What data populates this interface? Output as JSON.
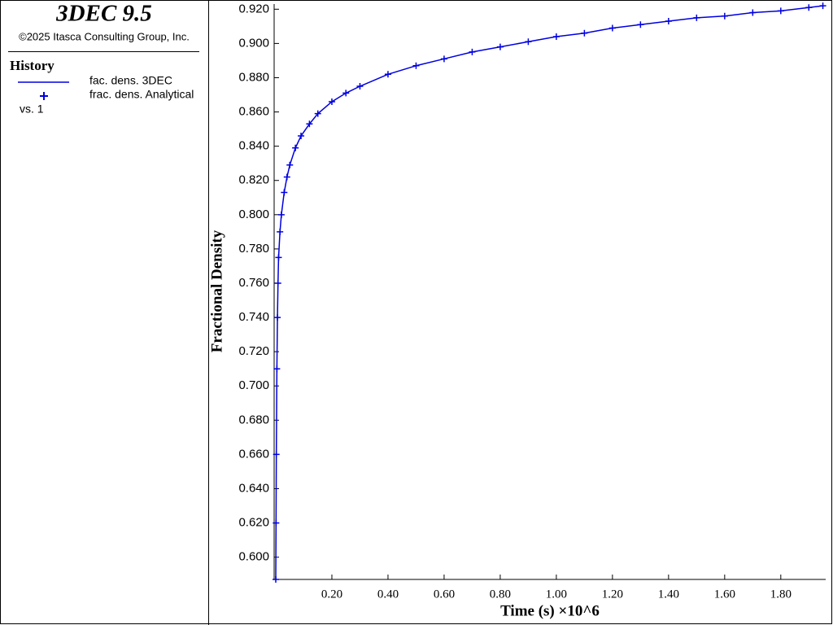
{
  "chart_data": {
    "type": "line",
    "title": "3DEC 9.5",
    "subtitle": "©2025 Itasca Consulting Group, Inc.",
    "legend_title": "History",
    "legend_suffix": "vs. 1",
    "xlabel": "Time (s) ×10^6",
    "ylabel": "Fractional Density",
    "x": [
      0,
      0.001,
      0.002,
      0.004,
      0.006,
      0.008,
      0.01,
      0.015,
      0.02,
      0.03,
      0.04,
      0.05,
      0.07,
      0.09,
      0.12,
      0.15,
      0.2,
      0.25,
      0.3,
      0.4,
      0.5,
      0.6,
      0.7,
      0.8,
      0.9,
      1.0,
      1.1,
      1.2,
      1.3,
      1.4,
      1.5,
      1.6,
      1.7,
      1.8,
      1.9,
      1.95
    ],
    "series": [
      {
        "name": "fac. dens. 3DEC",
        "color": "#0000e0",
        "style": "line",
        "values": [
          0.587,
          0.62,
          0.66,
          0.71,
          0.74,
          0.76,
          0.775,
          0.79,
          0.8,
          0.813,
          0.822,
          0.829,
          0.839,
          0.846,
          0.853,
          0.859,
          0.866,
          0.871,
          0.875,
          0.882,
          0.887,
          0.891,
          0.895,
          0.898,
          0.901,
          0.904,
          0.906,
          0.909,
          0.911,
          0.913,
          0.915,
          0.916,
          0.918,
          0.919,
          0.921,
          0.922
        ]
      },
      {
        "name": "frac. dens. Analytical",
        "color": "#0000e0",
        "style": "marker",
        "values": [
          0.587,
          0.62,
          0.66,
          0.71,
          0.74,
          0.76,
          0.775,
          0.79,
          0.8,
          0.813,
          0.822,
          0.829,
          0.839,
          0.846,
          0.853,
          0.859,
          0.866,
          0.871,
          0.875,
          0.882,
          0.887,
          0.891,
          0.895,
          0.898,
          0.901,
          0.904,
          0.906,
          0.909,
          0.911,
          0.913,
          0.915,
          0.916,
          0.918,
          0.919,
          0.921,
          0.922
        ]
      }
    ],
    "xlim": [
      0,
      1.96
    ],
    "ylim": [
      0.587,
      0.923
    ],
    "xticks": [
      {
        "value": 0.2,
        "label": "0.20"
      },
      {
        "value": 0.4,
        "label": "0.40"
      },
      {
        "value": 0.6,
        "label": "0.60"
      },
      {
        "value": 0.8,
        "label": "0.80"
      },
      {
        "value": 1.0,
        "label": "1.00"
      },
      {
        "value": 1.2,
        "label": "1.20"
      },
      {
        "value": 1.4,
        "label": "1.40"
      },
      {
        "value": 1.6,
        "label": "1.60"
      },
      {
        "value": 1.8,
        "label": "1.80"
      }
    ],
    "yticks": [
      {
        "value": 0.6,
        "label": "0.600"
      },
      {
        "value": 0.62,
        "label": "0.620"
      },
      {
        "value": 0.64,
        "label": "0.640"
      },
      {
        "value": 0.66,
        "label": "0.660"
      },
      {
        "value": 0.68,
        "label": "0.680"
      },
      {
        "value": 0.7,
        "label": "0.700"
      },
      {
        "value": 0.72,
        "label": "0.720"
      },
      {
        "value": 0.74,
        "label": "0.740"
      },
      {
        "value": 0.76,
        "label": "0.760"
      },
      {
        "value": 0.78,
        "label": "0.780"
      },
      {
        "value": 0.8,
        "label": "0.800"
      },
      {
        "value": 0.82,
        "label": "0.820"
      },
      {
        "value": 0.84,
        "label": "0.840"
      },
      {
        "value": 0.86,
        "label": "0.860"
      },
      {
        "value": 0.88,
        "label": "0.880"
      },
      {
        "value": 0.9,
        "label": "0.900"
      },
      {
        "value": 0.92,
        "label": "0.920"
      }
    ]
  }
}
